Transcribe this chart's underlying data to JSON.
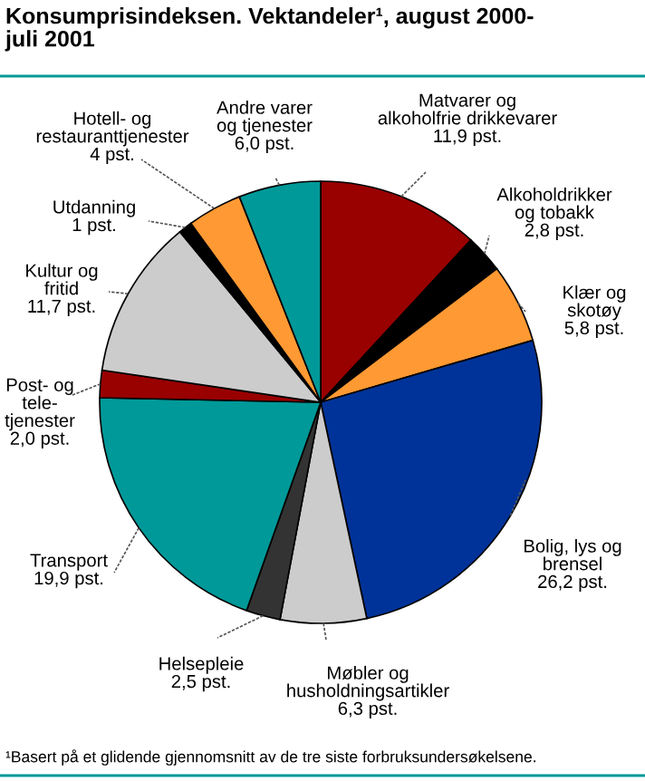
{
  "chart_data": {
    "type": "pie",
    "title": "Konsumprisindeksen. Vektandeler¹, august 2000-\njuli 2001",
    "categories": [
      "Matvarer og\nalkoholfrie drikkevarer",
      "Alkoholdrikker\nog tobakk",
      "Klær og\nskotøy",
      "Bolig, lys og\nbrensel",
      "Møbler og\nhusholdningsartikler",
      "Helsepleie",
      "Transport",
      "Post- og\ntele-\ntjenester",
      "Kultur og\nfritid",
      "Utdanning",
      "Hotell- og\nrestauranttjenester",
      "Andre varer\nog tjenester"
    ],
    "values": [
      11.9,
      2.8,
      5.8,
      26.2,
      6.3,
      2.5,
      19.9,
      2.0,
      11.7,
      1,
      4,
      6.0
    ],
    "value_labels": [
      "11,9 pst.",
      "2,8 pst.",
      "5,8 pst.",
      "26,2 pst.",
      "6,3 pst.",
      "2,5 pst.",
      "19,9 pst.",
      "2,0 pst.",
      "11,7 pst.",
      "1 pst.",
      "4 pst.",
      "6,0 pst."
    ],
    "colors": [
      "#990000",
      "#000000",
      "#ff9933",
      "#003399",
      "#cccccc",
      "#333333",
      "#009999",
      "#990000",
      "#cccccc",
      "#000000",
      "#ff9933",
      "#009999"
    ],
    "annotations": [
      "¹Basert på et glidende gjennomsnitt av de tre siste forbruksundersøkelsene."
    ],
    "legend": false
  }
}
